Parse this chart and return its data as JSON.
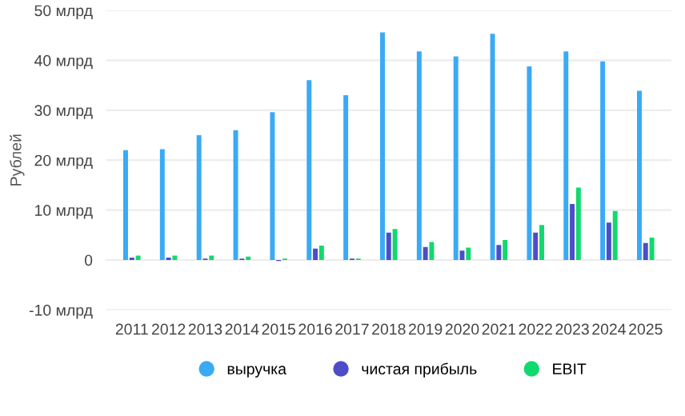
{
  "chart_data": {
    "type": "bar",
    "ylabel": "Рублей",
    "categories": [
      "2011",
      "2012",
      "2013",
      "2014",
      "2015",
      "2016",
      "2017",
      "2018",
      "2019",
      "2020",
      "2021",
      "2022",
      "2023",
      "2024",
      "2025"
    ],
    "series": [
      {
        "name": "выручка",
        "color": "#3aaaf5",
        "values": [
          22,
          22.2,
          25,
          26,
          29.6,
          36,
          33,
          45.6,
          41.8,
          40.8,
          45.3,
          38.8,
          41.8,
          39.8,
          33.9
        ]
      },
      {
        "name": "чистая прибыль",
        "color": "#4d4dc9",
        "values": [
          0.5,
          0.5,
          0.3,
          0.3,
          -0.2,
          2.3,
          0.3,
          5.5,
          2.6,
          1.9,
          3,
          5.5,
          11.2,
          7.5,
          3.4
        ]
      },
      {
        "name": "EBIT",
        "color": "#12d96e",
        "values": [
          0.9,
          0.9,
          0.9,
          0.7,
          0.3,
          2.9,
          0.3,
          6.2,
          3.6,
          2.5,
          4,
          7,
          14.5,
          9.8,
          4.5
        ]
      }
    ],
    "ylim": [
      -10,
      50
    ],
    "yticks": [
      {
        "value": -10,
        "label": "-10 млрд"
      },
      0,
      {
        "value": 10,
        "label": "10 млрд"
      },
      {
        "value": 20,
        "label": "20 млрд"
      },
      {
        "value": 30,
        "label": "30 млрд"
      },
      {
        "value": 40,
        "label": "40 млрд"
      },
      {
        "value": 50,
        "label": "50 млрд"
      }
    ],
    "grid": "y",
    "legend": "bottom"
  }
}
